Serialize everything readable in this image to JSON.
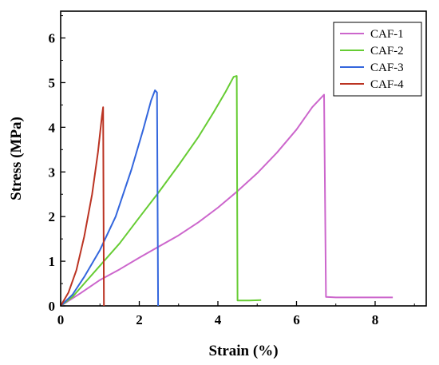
{
  "chart_data": {
    "type": "line",
    "xlabel": "Strain (%)",
    "ylabel": "Stress (MPa)",
    "xlim": [
      0,
      9.3
    ],
    "ylim": [
      0,
      6.6
    ],
    "xticks": [
      0,
      2,
      4,
      6,
      8
    ],
    "yticks": [
      0,
      1,
      2,
      3,
      4,
      5,
      6
    ],
    "legend_position": "top-right",
    "grid": false,
    "series": [
      {
        "name": "CAF-1",
        "color": "#cc66cc",
        "points": [
          [
            0,
            0
          ],
          [
            0.5,
            0.28
          ],
          [
            1,
            0.58
          ],
          [
            1.5,
            0.82
          ],
          [
            2,
            1.08
          ],
          [
            2.5,
            1.33
          ],
          [
            3,
            1.58
          ],
          [
            3.5,
            1.87
          ],
          [
            4,
            2.2
          ],
          [
            4.5,
            2.57
          ],
          [
            5,
            2.97
          ],
          [
            5.5,
            3.43
          ],
          [
            6,
            3.95
          ],
          [
            6.4,
            4.45
          ],
          [
            6.7,
            4.73
          ],
          [
            6.75,
            0.2
          ],
          [
            7,
            0.19
          ],
          [
            7.5,
            0.19
          ],
          [
            8,
            0.19
          ],
          [
            8.45,
            0.19
          ]
        ]
      },
      {
        "name": "CAF-2",
        "color": "#66cc33",
        "points": [
          [
            0,
            0
          ],
          [
            0.3,
            0.2
          ],
          [
            0.6,
            0.5
          ],
          [
            1,
            0.9
          ],
          [
            1.5,
            1.4
          ],
          [
            2,
            1.98
          ],
          [
            2.5,
            2.55
          ],
          [
            3,
            3.15
          ],
          [
            3.5,
            3.78
          ],
          [
            3.9,
            4.35
          ],
          [
            4.2,
            4.8
          ],
          [
            4.4,
            5.13
          ],
          [
            4.48,
            5.15
          ],
          [
            4.5,
            0.12
          ],
          [
            4.8,
            0.12
          ],
          [
            5.1,
            0.13
          ]
        ]
      },
      {
        "name": "CAF-3",
        "color": "#3366dd",
        "points": [
          [
            0,
            0
          ],
          [
            0.3,
            0.25
          ],
          [
            0.6,
            0.65
          ],
          [
            1,
            1.25
          ],
          [
            1.4,
            2.0
          ],
          [
            1.8,
            3.05
          ],
          [
            2.1,
            3.95
          ],
          [
            2.3,
            4.6
          ],
          [
            2.4,
            4.83
          ],
          [
            2.45,
            4.78
          ],
          [
            2.48,
            0
          ]
        ]
      },
      {
        "name": "CAF-4",
        "color": "#bb3322",
        "points": [
          [
            0,
            0
          ],
          [
            0.2,
            0.3
          ],
          [
            0.4,
            0.8
          ],
          [
            0.6,
            1.55
          ],
          [
            0.8,
            2.5
          ],
          [
            0.95,
            3.45
          ],
          [
            1.05,
            4.25
          ],
          [
            1.08,
            4.45
          ],
          [
            1.1,
            0
          ]
        ]
      }
    ]
  }
}
